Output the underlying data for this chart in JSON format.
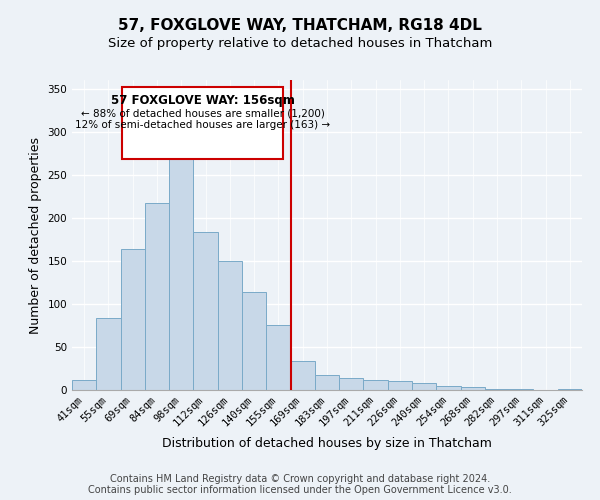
{
  "title": "57, FOXGLOVE WAY, THATCHAM, RG18 4DL",
  "subtitle": "Size of property relative to detached houses in Thatcham",
  "xlabel": "Distribution of detached houses by size in Thatcham",
  "ylabel": "Number of detached properties",
  "bar_labels": [
    "41sqm",
    "55sqm",
    "69sqm",
    "84sqm",
    "98sqm",
    "112sqm",
    "126sqm",
    "140sqm",
    "155sqm",
    "169sqm",
    "183sqm",
    "197sqm",
    "211sqm",
    "226sqm",
    "240sqm",
    "254sqm",
    "268sqm",
    "282sqm",
    "297sqm",
    "311sqm",
    "325sqm"
  ],
  "bar_values": [
    12,
    84,
    164,
    217,
    287,
    183,
    150,
    114,
    76,
    34,
    18,
    14,
    12,
    10,
    8,
    5,
    3,
    1,
    1,
    0,
    1
  ],
  "bar_color": "#c8d8e8",
  "bar_edge_color": "#7aaac8",
  "vline_x": 8.5,
  "vline_color": "#cc0000",
  "annotation_title": "57 FOXGLOVE WAY: 156sqm",
  "annotation_line1": "← 88% of detached houses are smaller (1,200)",
  "annotation_line2": "12% of semi-detached houses are larger (163) →",
  "annotation_box_color": "#ffffff",
  "annotation_box_edge": "#cc0000",
  "ylim": [
    0,
    360
  ],
  "yticks": [
    0,
    50,
    100,
    150,
    200,
    250,
    300,
    350
  ],
  "footer1": "Contains HM Land Registry data © Crown copyright and database right 2024.",
  "footer2": "Contains public sector information licensed under the Open Government Licence v3.0.",
  "background_color": "#edf2f7",
  "grid_color": "#ffffff",
  "title_fontsize": 11,
  "subtitle_fontsize": 9.5,
  "axis_label_fontsize": 9,
  "tick_fontsize": 7.5,
  "footer_fontsize": 7,
  "annot_title_fontsize": 8.5,
  "annot_text_fontsize": 7.5
}
